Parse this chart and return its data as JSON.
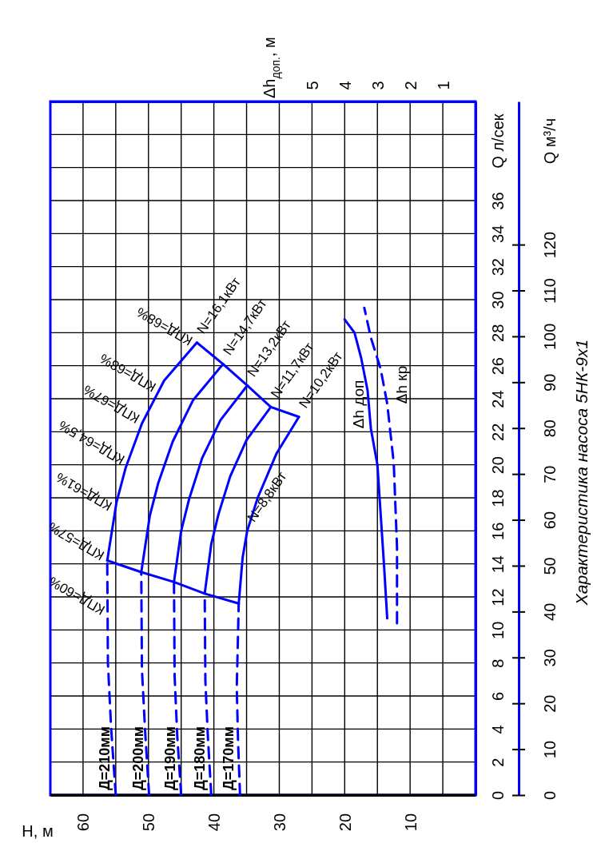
{
  "chart_data": {
    "type": "line",
    "title": "Характеристика насоса 5НК-9х1",
    "xlabel": "H, м",
    "ylabel": "Q л/сек",
    "y2label": "Q м³/ч",
    "x2label": "Δh$_{доп.}$, м",
    "xlim": [
      65,
      0
    ],
    "xticks": [
      60,
      {
        "value": 55,
        "label": null
      },
      50,
      {
        "value": 45,
        "label": null
      },
      40,
      {
        "value": 35,
        "label": null
      },
      30,
      {
        "value": 25,
        "label": null
      },
      20,
      {
        "value": 15,
        "label": null
      },
      10,
      {
        "value": 5,
        "label": null
      }
    ],
    "ylim": [
      0,
      42
    ],
    "yticks": [
      0,
      2,
      4,
      6,
      8,
      10,
      12,
      14,
      16,
      18,
      20,
      22,
      24,
      26,
      28,
      30,
      32,
      34,
      36,
      {
        "value": 38,
        "label": null
      },
      {
        "value": 40,
        "label": null
      }
    ],
    "x2lim": [
      13,
      0
    ],
    "x2ticks": [
      5,
      4,
      3,
      2,
      1
    ],
    "y2lim": [
      0,
      151.2
    ],
    "y2ticks": [
      0,
      10,
      20,
      30,
      40,
      50,
      60,
      70,
      80,
      90,
      100,
      110,
      120
    ],
    "grid": true,
    "series": [
      {
        "name": "Д=210мм",
        "color": "#0000ff",
        "line_style": "dashed",
        "x": [
          55.0,
          55.7,
          56.2,
          56.3
        ],
        "values": [
          0,
          4,
          8,
          14.2
        ]
      },
      {
        "color": "#0000ff",
        "x": [
          56.3,
          54.9,
          53.5,
          51.0,
          47.6,
          42.6
        ],
        "values": [
          14.2,
          17.7,
          19.8,
          22.5,
          25.1,
          27.4
        ]
      },
      {
        "name": "Д=200мм",
        "color": "#0000ff",
        "line_style": "dashed",
        "x": [
          49.9,
          50.5,
          51.0,
          51.1
        ],
        "values": [
          0,
          3.8,
          7.6,
          13.5
        ]
      },
      {
        "color": "#0000ff",
        "x": [
          51.1,
          49.8,
          48.5,
          46.3,
          43.2,
          38.6
        ],
        "values": [
          13.5,
          16.9,
          18.9,
          21.4,
          23.9,
          26.1
        ]
      },
      {
        "name": "Д=190мм",
        "color": "#0000ff",
        "line_style": "dashed",
        "x": [
          45.0,
          45.6,
          46.0,
          46.1
        ],
        "values": [
          0,
          3.6,
          7.2,
          12.9
        ]
      },
      {
        "color": "#0000ff",
        "x": [
          46.1,
          45.0,
          43.8,
          41.8,
          39.0,
          34.9
        ],
        "values": [
          12.9,
          16.0,
          17.9,
          20.4,
          22.7,
          24.8
        ]
      },
      {
        "name": "Д=180мм",
        "color": "#0000ff",
        "line_style": "dashed",
        "x": [
          40.4,
          40.9,
          41.3,
          41.4
        ],
        "values": [
          0,
          3.4,
          6.9,
          12.2
        ]
      },
      {
        "color": "#0000ff",
        "x": [
          41.4,
          40.4,
          39.3,
          37.5,
          35.0,
          31.3
        ],
        "values": [
          12.2,
          15.2,
          17.0,
          19.3,
          21.5,
          23.5
        ]
      },
      {
        "name": "Д=170мм",
        "color": "#0000ff",
        "line_style": "dashed",
        "x": [
          36.0,
          36.3,
          36.5,
          36.2
        ],
        "values": [
          0,
          3.2,
          6.5,
          11.6
        ]
      },
      {
        "color": "#0000ff",
        "x": [
          36.2,
          35.6,
          34.9,
          33.3,
          30.4,
          27.0
        ],
        "values": [
          11.6,
          14.4,
          16.0,
          18.0,
          20.7,
          22.9
        ]
      },
      {
        "color": "#0000ff",
        "x": [
          42.6,
          38.6,
          34.9,
          31.3,
          27.0
        ],
        "values": [
          27.4,
          26.1,
          24.8,
          23.5,
          22.9
        ]
      },
      {
        "color": "#0000ff",
        "x": [
          56.3,
          51.1,
          46.1,
          41.4,
          36.2
        ],
        "values": [
          14.2,
          13.5,
          12.9,
          12.2,
          11.6
        ]
      },
      {
        "name": "Δh доп",
        "color": "#0000ff",
        "axis": "x2",
        "x": [
          2.7,
          2.8,
          2.9,
          3.0,
          3.2,
          3.3,
          3.5,
          3.7,
          4.0
        ],
        "values": [
          10.7,
          14,
          17,
          20,
          22.2,
          24.5,
          26.5,
          28,
          28.8
        ]
      },
      {
        "name": "Δh кр",
        "color": "#0000ff",
        "axis": "x2",
        "line_style": "dashed",
        "x": [
          2.4,
          2.4,
          2.5,
          2.7,
          2.9,
          3.2,
          3.4
        ],
        "values": [
          10.4,
          15,
          20.1,
          23.7,
          25.8,
          27.7,
          29.5
        ]
      }
    ],
    "annotations": [
      {
        "text": "КПД=68%",
        "x": 42.8,
        "y": 27.3
      },
      {
        "text": "КПД=68%",
        "x": 48.4,
        "y": 24.5
      },
      {
        "text": "КПД=67%",
        "x": 50.9,
        "y": 22.6
      },
      {
        "text": "КПД=64,5%",
        "x": 53.2,
        "y": 20.1
      },
      {
        "text": "КПД=61%",
        "x": 55.1,
        "y": 17.3
      },
      {
        "text": "КПД=57%",
        "x": 56.3,
        "y": 14.3
      },
      {
        "text": "КПД=60%",
        "x": 56.2,
        "y": 11.0
      },
      {
        "text": "N=16,1кВт",
        "x": 42.6,
        "y": 27.4
      },
      {
        "text": "N=14,7кВт",
        "x": 38.6,
        "y": 26.1
      },
      {
        "text": "N=13,2кВт",
        "x": 34.9,
        "y": 24.8
      },
      {
        "text": "N=11,7кВт",
        "x": 31.3,
        "y": 23.5
      },
      {
        "text": "N=10,2кВт",
        "x": 27.0,
        "y": 22.9
      },
      {
        "text": "N=8,8кВт",
        "x": 34.9,
        "y": 16.0
      }
    ]
  }
}
